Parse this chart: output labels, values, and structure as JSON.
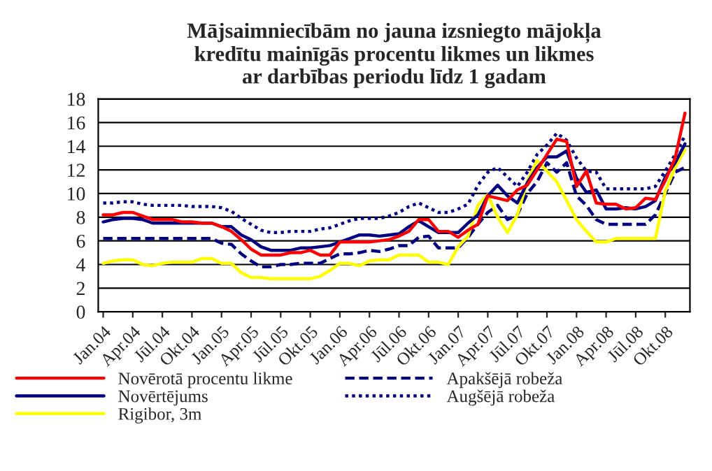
{
  "chart_data": {
    "type": "line",
    "title": "Mājsaimniecībām no jauna izsniegto mājokļa\nkredītu mainīgās procentu likmes un likmes\nar darbības periodu līdz 1 gadam",
    "categories": [
      "Jan.04",
      null,
      null,
      "Apr.04",
      null,
      null,
      "Jūl.04",
      null,
      null,
      "Okt.04",
      null,
      null,
      "Jan.05",
      null,
      null,
      "Apr.05",
      null,
      null,
      "Jūl.05",
      null,
      null,
      "Okt.05",
      null,
      null,
      "Jan.06",
      null,
      null,
      "Apr.06",
      null,
      null,
      "Jūl.06",
      null,
      null,
      "Okt.06",
      null,
      null,
      "Jan.07",
      null,
      null,
      "Apr.07",
      null,
      null,
      "Jūl.07",
      null,
      null,
      "Okt.07",
      null,
      null,
      "Jan.08",
      null,
      null,
      "Apr.08",
      null,
      null,
      "Jūl.08",
      null,
      null,
      "Okt.08",
      null,
      null
    ],
    "series": [
      {
        "name": "Novērotā procentu likme",
        "color": "#ff0000",
        "line_style": "solid",
        "values": [
          8.2,
          8.2,
          8.4,
          8.4,
          8.1,
          7.8,
          7.8,
          7.8,
          7.6,
          7.6,
          7.5,
          7.5,
          7.2,
          6.8,
          6.1,
          5.3,
          4.8,
          4.8,
          4.8,
          5.0,
          5.0,
          5.2,
          4.8,
          4.8,
          5.9,
          5.9,
          5.9,
          5.9,
          6.0,
          6.1,
          6.4,
          6.8,
          7.8,
          7.8,
          6.8,
          6.8,
          6.3,
          6.9,
          7.4,
          9.8,
          9.6,
          9.4,
          10.3,
          10.7,
          12.0,
          13.3,
          14.6,
          14.4,
          10.6,
          11.9,
          9.2,
          9.1,
          9.1,
          8.7,
          8.8,
          9.6,
          9.5,
          11.1,
          13.0,
          16.8
        ]
      },
      {
        "name": "Novērtējums",
        "color": "#000080",
        "line_style": "solid",
        "values": [
          7.6,
          7.8,
          7.9,
          7.9,
          7.8,
          7.5,
          7.5,
          7.5,
          7.5,
          7.5,
          7.5,
          7.5,
          7.2,
          7.2,
          6.5,
          6.1,
          5.5,
          5.2,
          5.2,
          5.2,
          5.4,
          5.4,
          5.5,
          5.6,
          5.9,
          6.2,
          6.5,
          6.5,
          6.4,
          6.5,
          6.6,
          7.2,
          7.7,
          7.2,
          6.7,
          6.7,
          6.7,
          7.5,
          8.2,
          9.8,
          10.7,
          9.8,
          9.2,
          10.9,
          12.2,
          13.1,
          13.1,
          13.6,
          11.3,
          10.1,
          10.3,
          8.7,
          8.7,
          8.8,
          8.7,
          8.9,
          9.4,
          11.4,
          12.6,
          14.2
        ]
      },
      {
        "name": "Rigibor, 3m",
        "color": "#ffff00",
        "line_style": "solid",
        "values": [
          4.1,
          4.3,
          4.4,
          4.4,
          4.0,
          3.9,
          4.1,
          4.2,
          4.2,
          4.2,
          4.5,
          4.5,
          4.1,
          4.1,
          3.3,
          2.9,
          2.9,
          2.8,
          2.8,
          2.8,
          2.8,
          2.8,
          3.0,
          3.5,
          4.1,
          4.1,
          3.9,
          4.3,
          4.4,
          4.4,
          4.8,
          4.8,
          4.8,
          4.2,
          4.2,
          4.0,
          5.5,
          6.4,
          9.0,
          9.9,
          8.0,
          6.7,
          8.2,
          11.0,
          12.8,
          11.9,
          11.0,
          9.4,
          7.8,
          6.8,
          5.9,
          5.9,
          6.2,
          6.2,
          6.2,
          6.2,
          6.2,
          10.2,
          12.2,
          13.7
        ]
      },
      {
        "name": "Apakšējā robeža",
        "color": "#000080",
        "line_style": "dashed",
        "values": [
          6.2,
          6.2,
          6.2,
          6.2,
          6.2,
          6.2,
          6.2,
          6.2,
          6.2,
          6.2,
          6.2,
          6.2,
          5.8,
          5.7,
          4.9,
          4.3,
          3.8,
          3.8,
          4.0,
          4.0,
          4.1,
          4.1,
          4.1,
          4.5,
          4.9,
          4.9,
          5.0,
          5.2,
          5.1,
          5.3,
          5.6,
          5.6,
          6.3,
          6.4,
          5.4,
          5.4,
          5.4,
          6.3,
          7.4,
          8.4,
          9.0,
          7.8,
          8.2,
          10.0,
          11.0,
          12.6,
          11.8,
          12.6,
          9.8,
          9.0,
          7.8,
          7.4,
          7.4,
          7.4,
          7.4,
          7.4,
          8.2,
          10.0,
          11.8,
          12.2
        ]
      },
      {
        "name": "Augšējā robeža",
        "color": "#000080",
        "line_style": "dotted",
        "values": [
          9.2,
          9.2,
          9.3,
          9.3,
          9.1,
          9.0,
          9.0,
          9.0,
          9.0,
          8.9,
          8.9,
          8.9,
          8.8,
          8.5,
          7.9,
          7.4,
          6.9,
          6.7,
          6.7,
          6.8,
          6.8,
          6.8,
          7.0,
          7.1,
          7.4,
          7.7,
          7.9,
          7.9,
          7.9,
          8.1,
          8.4,
          8.9,
          9.2,
          8.8,
          8.4,
          8.4,
          8.7,
          9.1,
          10.7,
          11.8,
          12.2,
          11.4,
          10.6,
          11.8,
          13.3,
          14.1,
          15.1,
          14.5,
          13.0,
          11.9,
          11.8,
          10.4,
          10.4,
          10.4,
          10.4,
          10.4,
          10.6,
          11.9,
          13.3,
          14.9
        ]
      }
    ],
    "ylim": [
      0,
      18
    ],
    "yticks": [
      0,
      2,
      4,
      6,
      8,
      10,
      12,
      14,
      16,
      18
    ],
    "grid": "y",
    "legend": "bottom",
    "marker": "none"
  }
}
